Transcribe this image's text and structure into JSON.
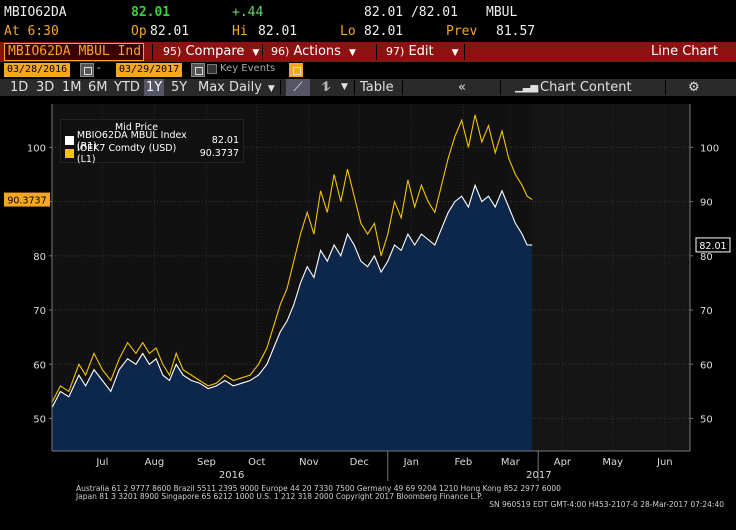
{
  "header": {
    "ticker": "MBIO62DA",
    "last": "82.01",
    "change": "+.44",
    "bid_ask": "82.01 /82.01",
    "source": "MBUL",
    "time_label": "At 6:30",
    "open_label": "Op",
    "open": "82.01",
    "high_label": "Hi",
    "high": "82.01",
    "low_label": "Lo",
    "low": "82.01",
    "prev_label": "Prev",
    "prev": "81.57"
  },
  "toolbar": {
    "security": "MBIO62DA MBUL Ind",
    "compare_num": "95)",
    "compare": "Compare",
    "actions_num": "96)",
    "actions": "Actions",
    "edit_num": "97)",
    "edit": "Edit",
    "view": "Line Chart"
  },
  "dates": {
    "start": "03/28/2016",
    "end": "03/29/2017",
    "key_events": "Key Events"
  },
  "periods": [
    "1D",
    "3D",
    "1M",
    "6M",
    "YTD",
    "1Y",
    "5Y"
  ],
  "selected_period": "1Y",
  "frequency": "Max Daily",
  "table_label": "Table",
  "chart_content_label": "Chart Content",
  "legend": {
    "title": "Mid Price",
    "entries": [
      {
        "label": "MBIO62DA MBUL Index  (R1)",
        "value": "82.01",
        "color": "#ffffff"
      },
      {
        "label": "IOEK7 Comdty (USD)  (L1)",
        "value": "90.3737",
        "color": "#f5c400"
      }
    ]
  },
  "footer": {
    "line1": "Australia 61 2 9777 8600 Brazil 5511 2395 9000 Europe 44 20 7330 7500 Germany 49 69 9204 1210 Hong Kong 852 2977 6000",
    "line2": "Japan 81 3 3201 8900        Singapore 65 6212 1000        U.S. 1 212 318 2000        Copyright 2017 Bloomberg Finance L.P.",
    "line3": "SN 960519 EDT  GMT-4:00 H453-2107-0 28-Mar-2017 07:24:40"
  },
  "chart_data": {
    "type": "line",
    "y_left": {
      "ticks": [
        50,
        60,
        70,
        80,
        90,
        100
      ],
      "range": [
        44,
        108
      ]
    },
    "y_right": {
      "ticks": [
        50,
        60,
        70,
        80,
        90,
        100
      ],
      "range": [
        44,
        108
      ]
    },
    "x_range": [
      "2016-06-15",
      "2017-06-30"
    ],
    "x_ticks": [
      {
        "date": "2016-07-15",
        "label": "Jul"
      },
      {
        "date": "2016-08-15",
        "label": "Aug"
      },
      {
        "date": "2016-09-15",
        "label": "Sep"
      },
      {
        "date": "2016-10-15",
        "label": "Oct"
      },
      {
        "date": "2016-11-15",
        "label": "Nov"
      },
      {
        "date": "2016-12-15",
        "label": "Dec"
      },
      {
        "date": "2017-01-15",
        "label": "Jan"
      },
      {
        "date": "2017-02-15",
        "label": "Feb"
      },
      {
        "date": "2017-03-15",
        "label": "Mar"
      },
      {
        "date": "2017-04-15",
        "label": "Apr"
      },
      {
        "date": "2017-05-15",
        "label": "May"
      },
      {
        "date": "2017-06-15",
        "label": "Jun"
      }
    ],
    "year_labels": [
      {
        "date": "2016-09-30",
        "label": "2016"
      },
      {
        "date": "2017-04-01",
        "label": "2017"
      }
    ],
    "last_value_tags": [
      {
        "axis": "left",
        "value": 90.3737,
        "label": "90.3737",
        "color": "#f5a623"
      },
      {
        "axis": "right",
        "value": 82.01,
        "label": "82.01",
        "color": "#ffffff"
      }
    ],
    "grid": true,
    "series": [
      {
        "name": "MBIO62DA MBUL Index",
        "color": "#ffffff",
        "fill": "#0d2a52",
        "points": [
          [
            "2016-06-15",
            52
          ],
          [
            "2016-06-20",
            55
          ],
          [
            "2016-06-25",
            54
          ],
          [
            "2016-07-01",
            58
          ],
          [
            "2016-07-05",
            56
          ],
          [
            "2016-07-10",
            59
          ],
          [
            "2016-07-15",
            57
          ],
          [
            "2016-07-20",
            55
          ],
          [
            "2016-07-25",
            59
          ],
          [
            "2016-07-30",
            61
          ],
          [
            "2016-08-04",
            60
          ],
          [
            "2016-08-08",
            62
          ],
          [
            "2016-08-12",
            60
          ],
          [
            "2016-08-16",
            61
          ],
          [
            "2016-08-20",
            58
          ],
          [
            "2016-08-24",
            57
          ],
          [
            "2016-08-28",
            60
          ],
          [
            "2016-09-01",
            58
          ],
          [
            "2016-09-06",
            57
          ],
          [
            "2016-09-11",
            56.5
          ],
          [
            "2016-09-16",
            55.5
          ],
          [
            "2016-09-21",
            56
          ],
          [
            "2016-09-26",
            57
          ],
          [
            "2016-10-01",
            56
          ],
          [
            "2016-10-06",
            56.5
          ],
          [
            "2016-10-11",
            57
          ],
          [
            "2016-10-16",
            58
          ],
          [
            "2016-10-21",
            60
          ],
          [
            "2016-10-25",
            63
          ],
          [
            "2016-10-29",
            66
          ],
          [
            "2016-11-02",
            68
          ],
          [
            "2016-11-06",
            71
          ],
          [
            "2016-11-10",
            75
          ],
          [
            "2016-11-14",
            78
          ],
          [
            "2016-11-18",
            76
          ],
          [
            "2016-11-22",
            81
          ],
          [
            "2016-11-26",
            79
          ],
          [
            "2016-11-30",
            82
          ],
          [
            "2016-12-04",
            80
          ],
          [
            "2016-12-08",
            84
          ],
          [
            "2016-12-12",
            82
          ],
          [
            "2016-12-16",
            79
          ],
          [
            "2016-12-20",
            78
          ],
          [
            "2016-12-24",
            80
          ],
          [
            "2016-12-28",
            77
          ],
          [
            "2017-01-01",
            79
          ],
          [
            "2017-01-05",
            82
          ],
          [
            "2017-01-09",
            81
          ],
          [
            "2017-01-13",
            84
          ],
          [
            "2017-01-17",
            82
          ],
          [
            "2017-01-21",
            84
          ],
          [
            "2017-01-25",
            83
          ],
          [
            "2017-01-29",
            82
          ],
          [
            "2017-02-02",
            85
          ],
          [
            "2017-02-06",
            88
          ],
          [
            "2017-02-10",
            90
          ],
          [
            "2017-02-14",
            91
          ],
          [
            "2017-02-18",
            89
          ],
          [
            "2017-02-22",
            93
          ],
          [
            "2017-02-26",
            90
          ],
          [
            "2017-03-02",
            91
          ],
          [
            "2017-03-06",
            89
          ],
          [
            "2017-03-10",
            92
          ],
          [
            "2017-03-14",
            89
          ],
          [
            "2017-03-18",
            86
          ],
          [
            "2017-03-22",
            84
          ],
          [
            "2017-03-25",
            82
          ],
          [
            "2017-03-28",
            82.01
          ]
        ]
      },
      {
        "name": "IOEK7 Comdty (USD)",
        "color": "#f5c400",
        "fill": null,
        "points": [
          [
            "2016-06-15",
            53
          ],
          [
            "2016-06-20",
            56
          ],
          [
            "2016-06-25",
            55
          ],
          [
            "2016-07-01",
            60
          ],
          [
            "2016-07-05",
            58
          ],
          [
            "2016-07-10",
            62
          ],
          [
            "2016-07-15",
            59
          ],
          [
            "2016-07-20",
            57
          ],
          [
            "2016-07-25",
            61
          ],
          [
            "2016-07-30",
            64
          ],
          [
            "2016-08-04",
            62
          ],
          [
            "2016-08-08",
            64
          ],
          [
            "2016-08-12",
            62
          ],
          [
            "2016-08-16",
            63
          ],
          [
            "2016-08-20",
            60
          ],
          [
            "2016-08-24",
            58
          ],
          [
            "2016-08-28",
            62
          ],
          [
            "2016-09-01",
            59
          ],
          [
            "2016-09-06",
            58
          ],
          [
            "2016-09-11",
            57
          ],
          [
            "2016-09-16",
            56
          ],
          [
            "2016-09-21",
            56.5
          ],
          [
            "2016-09-26",
            58
          ],
          [
            "2016-10-01",
            57
          ],
          [
            "2016-10-06",
            57.5
          ],
          [
            "2016-10-11",
            58
          ],
          [
            "2016-10-16",
            60
          ],
          [
            "2016-10-21",
            63
          ],
          [
            "2016-10-25",
            67
          ],
          [
            "2016-10-29",
            71
          ],
          [
            "2016-11-02",
            74
          ],
          [
            "2016-11-06",
            79
          ],
          [
            "2016-11-10",
            84
          ],
          [
            "2016-11-14",
            88
          ],
          [
            "2016-11-18",
            84
          ],
          [
            "2016-11-22",
            92
          ],
          [
            "2016-11-26",
            88
          ],
          [
            "2016-11-30",
            95
          ],
          [
            "2016-12-04",
            90
          ],
          [
            "2016-12-08",
            96
          ],
          [
            "2016-12-12",
            91
          ],
          [
            "2016-12-16",
            86
          ],
          [
            "2016-12-20",
            84
          ],
          [
            "2016-12-24",
            86
          ],
          [
            "2016-12-28",
            80
          ],
          [
            "2017-01-01",
            84
          ],
          [
            "2017-01-05",
            90
          ],
          [
            "2017-01-09",
            87
          ],
          [
            "2017-01-13",
            94
          ],
          [
            "2017-01-17",
            89
          ],
          [
            "2017-01-21",
            93
          ],
          [
            "2017-01-25",
            90
          ],
          [
            "2017-01-29",
            88
          ],
          [
            "2017-02-02",
            93
          ],
          [
            "2017-02-06",
            98
          ],
          [
            "2017-02-10",
            102
          ],
          [
            "2017-02-14",
            105
          ],
          [
            "2017-02-18",
            100
          ],
          [
            "2017-02-22",
            106
          ],
          [
            "2017-02-26",
            101
          ],
          [
            "2017-03-02",
            104
          ],
          [
            "2017-03-06",
            99
          ],
          [
            "2017-03-10",
            103
          ],
          [
            "2017-03-14",
            98
          ],
          [
            "2017-03-18",
            95
          ],
          [
            "2017-03-22",
            93
          ],
          [
            "2017-03-25",
            91
          ],
          [
            "2017-03-28",
            90.3737
          ]
        ]
      }
    ]
  }
}
